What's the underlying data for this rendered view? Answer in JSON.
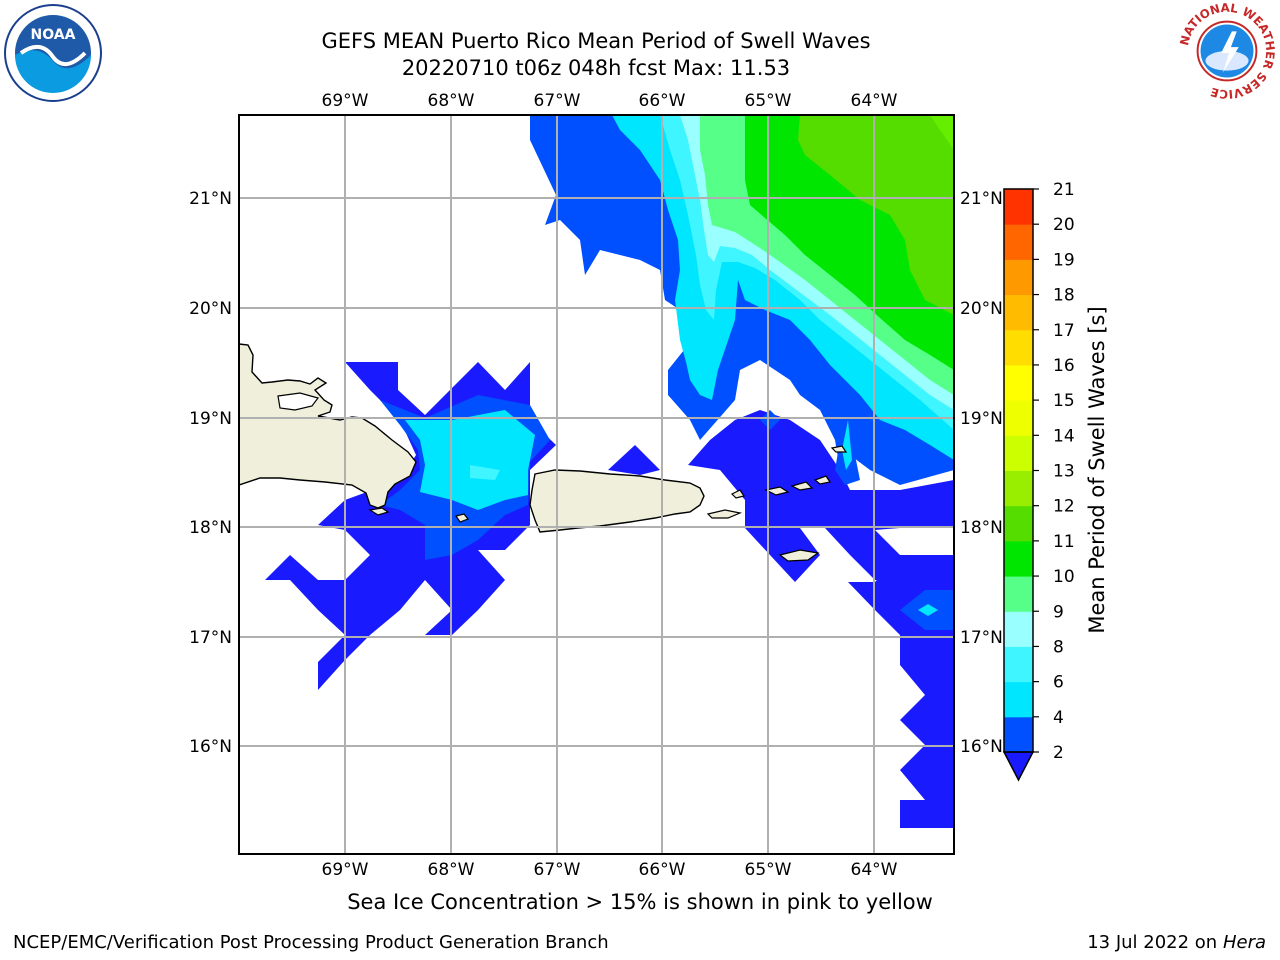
{
  "title_line1": "GEFS MEAN Puerto Rico Mean Period of Swell Waves",
  "title_line2": "20220710 t06z 048h fcst   Max: 11.53",
  "subcaption": "Sea Ice Concentration > 15% is shown in pink to yellow",
  "footer_left": "NCEP/EMC/Verification Post Processing Product Generation Branch",
  "footer_right_date": "13 Jul 2022 on ",
  "footer_right_host": "Hera",
  "colorbar": {
    "label": "Mean Period of Swell Waves [s]",
    "ticks": [
      "2",
      "4",
      "6",
      "8",
      "9",
      "10",
      "11",
      "12",
      "13",
      "14",
      "15",
      "16",
      "17",
      "18",
      "19",
      "20",
      "21"
    ],
    "colors": [
      "#0050ff",
      "#00e6ff",
      "#3ff5ff",
      "#99ffff",
      "#55ff88",
      "#00e600",
      "#55dd00",
      "#99ee00",
      "#ccff00",
      "#eeff00",
      "#ffff00",
      "#ffdd00",
      "#ffbb00",
      "#ff9900",
      "#ff6600",
      "#ff3300",
      "#ff0000"
    ],
    "under_color": "#1a1aff"
  },
  "map": {
    "lon_ticks": [
      "69°W",
      "68°W",
      "67°W",
      "66°W",
      "65°W",
      "64°W"
    ],
    "lat_ticks": [
      "21°N",
      "20°N",
      "19°N",
      "18°N",
      "17°N",
      "16°N"
    ],
    "land_color": "#efefdc",
    "lon_range": [
      -70,
      -63.25
    ],
    "lat_range": [
      15,
      21.75
    ]
  },
  "logos": {
    "noaa": "NOAA",
    "nws": "NATIONAL WEATHER SERVICE"
  }
}
